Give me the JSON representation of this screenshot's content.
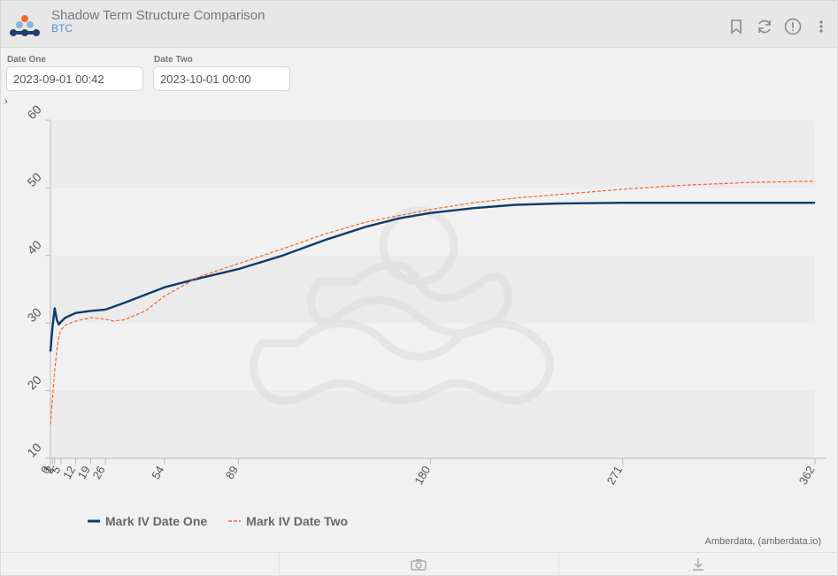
{
  "header": {
    "title": "Shadow Term Structure Comparison",
    "subtitle": "BTC"
  },
  "filters": {
    "date_one_label": "Date One",
    "date_one_value": "2023-09-01 00:42",
    "date_two_label": "Date Two",
    "date_two_value": "2023-10-01 00:00"
  },
  "toggle_glyph": "›",
  "credit": "Amberdata, (amberdata.io)",
  "colors": {
    "series_one": "#0e3a6e",
    "series_two": "#f06a2a",
    "plot_band": "#ebebeb",
    "plot_band_alt": "#f1f1f1"
  },
  "icons": [
    "bookmark-icon",
    "refresh-icon",
    "info-icon",
    "more-vertical-icon",
    "camera-icon",
    "download-icon"
  ],
  "chart_data": {
    "type": "line",
    "title": "",
    "xlabel": "",
    "ylabel": "",
    "ylim": [
      10,
      60
    ],
    "xlim": [
      0,
      362
    ],
    "yticks": [
      10,
      20,
      30,
      40,
      50,
      60
    ],
    "xticks": [
      0,
      1,
      2,
      5,
      12,
      19,
      26,
      54,
      89,
      180,
      271,
      362
    ],
    "legend_position": "bottom-left",
    "series": [
      {
        "name": "Mark IV Date One",
        "style": "solid",
        "points": [
          [
            0,
            25.8
          ],
          [
            1,
            29.5
          ],
          [
            2,
            32.2
          ],
          [
            3,
            30.5
          ],
          [
            4,
            29.8
          ],
          [
            5,
            30.2
          ],
          [
            7,
            30.8
          ],
          [
            12,
            31.5
          ],
          [
            19,
            31.8
          ],
          [
            26,
            32.0
          ],
          [
            35,
            33.0
          ],
          [
            54,
            35.3
          ],
          [
            70,
            36.6
          ],
          [
            89,
            38.0
          ],
          [
            110,
            40.0
          ],
          [
            130,
            42.3
          ],
          [
            150,
            44.3
          ],
          [
            165,
            45.5
          ],
          [
            180,
            46.3
          ],
          [
            200,
            47.0
          ],
          [
            220,
            47.5
          ],
          [
            240,
            47.7
          ],
          [
            271,
            47.8
          ],
          [
            300,
            47.8
          ],
          [
            362,
            47.8
          ]
        ]
      },
      {
        "name": "Mark IV Date Two",
        "style": "dashed",
        "points": [
          [
            0,
            15.0
          ],
          [
            1,
            19.0
          ],
          [
            2,
            23.0
          ],
          [
            3,
            26.0
          ],
          [
            4,
            28.0
          ],
          [
            5,
            29.0
          ],
          [
            7,
            29.7
          ],
          [
            12,
            30.3
          ],
          [
            19,
            30.8
          ],
          [
            26,
            30.6
          ],
          [
            30,
            30.3
          ],
          [
            35,
            30.5
          ],
          [
            45,
            31.8
          ],
          [
            54,
            34.0
          ],
          [
            70,
            36.8
          ],
          [
            89,
            38.8
          ],
          [
            110,
            41.0
          ],
          [
            130,
            43.2
          ],
          [
            150,
            45.0
          ],
          [
            180,
            46.8
          ],
          [
            200,
            47.8
          ],
          [
            220,
            48.5
          ],
          [
            240,
            49.0
          ],
          [
            271,
            49.8
          ],
          [
            300,
            50.4
          ],
          [
            330,
            50.8
          ],
          [
            362,
            51.0
          ]
        ]
      }
    ]
  }
}
